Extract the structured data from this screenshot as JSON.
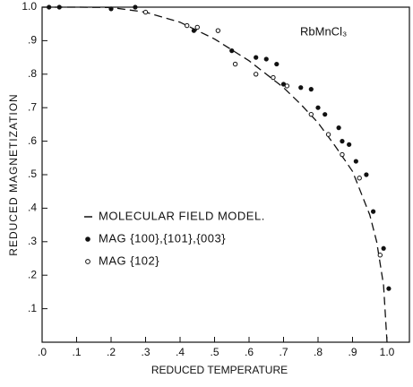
{
  "chart_data": {
    "type": "scatter",
    "annotation": "RbMnCl₃",
    "xlabel": "REDUCED TEMPERATURE",
    "ylabel": "REDUCED MAGNETIZATION",
    "xlim": [
      0,
      1.08
    ],
    "ylim": [
      0,
      1.0
    ],
    "xticks": [
      {
        "value": 0,
        "label": ".0"
      },
      {
        "value": 0.1,
        "label": ".1"
      },
      {
        "value": 0.2,
        "label": ".2"
      },
      {
        "value": 0.3,
        "label": ".3"
      },
      {
        "value": 0.4,
        "label": ".4"
      },
      {
        "value": 0.5,
        "label": ".5"
      },
      {
        "value": 0.6,
        "label": ".6"
      },
      {
        "value": 0.7,
        "label": ".7"
      },
      {
        "value": 0.8,
        "label": ".8"
      },
      {
        "value": 0.9,
        "label": ".9"
      },
      {
        "value": 1.0,
        "label": "1.0"
      }
    ],
    "yticks": [
      {
        "value": 0.1,
        "label": ".1"
      },
      {
        "value": 0.2,
        "label": ".2"
      },
      {
        "value": 0.3,
        "label": ".3"
      },
      {
        "value": 0.4,
        "label": ".4"
      },
      {
        "value": 0.5,
        "label": ".5"
      },
      {
        "value": 0.6,
        "label": ".6"
      },
      {
        "value": 0.7,
        "label": ".7"
      },
      {
        "value": 0.8,
        "label": ".8"
      },
      {
        "value": 0.9,
        "label": ".9"
      },
      {
        "value": 1.0,
        "label": "1.0"
      }
    ],
    "series": [
      {
        "name": "MOLECULAR FIELD MODEL.",
        "mark": "dashed-line",
        "color": "#111",
        "x": [
          0,
          0.1,
          0.2,
          0.3,
          0.4,
          0.5,
          0.6,
          0.7,
          0.75,
          0.8,
          0.85,
          0.9,
          0.95,
          0.97,
          0.99,
          1.0
        ],
        "values": [
          1.0,
          1.0,
          0.999,
          0.985,
          0.955,
          0.905,
          0.84,
          0.76,
          0.71,
          0.655,
          0.585,
          0.51,
          0.38,
          0.3,
          0.17,
          0
        ]
      },
      {
        "name": "MAG {100},{101},{003}",
        "mark": "filled",
        "color": "#111",
        "x": [
          0.02,
          0.05,
          0.2,
          0.27,
          0.44,
          0.55,
          0.62,
          0.65,
          0.68,
          0.7,
          0.75,
          0.78,
          0.8,
          0.82,
          0.86,
          0.87,
          0.89,
          0.91,
          0.94,
          0.96,
          0.99,
          1.005
        ],
        "values": [
          1.0,
          1.0,
          0.995,
          1.0,
          0.93,
          0.87,
          0.85,
          0.845,
          0.83,
          0.77,
          0.76,
          0.755,
          0.7,
          0.68,
          0.64,
          0.6,
          0.59,
          0.54,
          0.5,
          0.39,
          0.28,
          0.16
        ]
      },
      {
        "name": "MAG {102}",
        "mark": "open",
        "color": "#111",
        "x": [
          0.3,
          0.42,
          0.45,
          0.51,
          0.56,
          0.62,
          0.67,
          0.71,
          0.78,
          0.83,
          0.87,
          0.92,
          0.98
        ],
        "values": [
          0.985,
          0.945,
          0.94,
          0.93,
          0.83,
          0.8,
          0.79,
          0.765,
          0.68,
          0.62,
          0.56,
          0.49,
          0.26
        ]
      }
    ]
  }
}
